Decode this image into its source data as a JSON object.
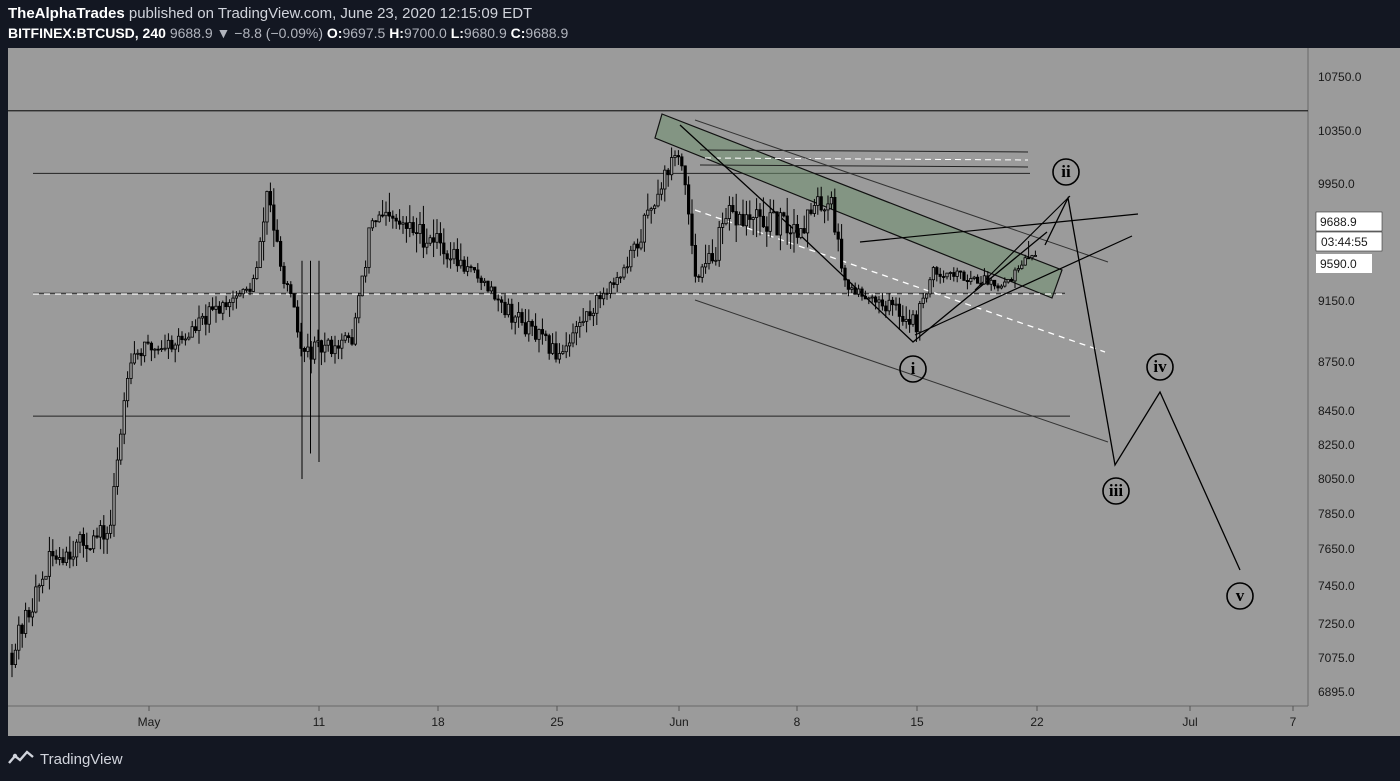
{
  "header": {
    "author": "TheAlphaTrades",
    "published_text": "published on TradingView.com, June 23, 2020 12:15:09 EDT",
    "symbol": "BITFINEX:BTCUSD, 240",
    "last_price": "9688.9",
    "change": "▼ −8.8 (−0.09%)",
    "o_label": "O:",
    "o_value": "9697.5",
    "h_label": "H:",
    "h_value": "9700.0",
    "l_label": "L:",
    "l_value": "9680.9",
    "c_label": "C:",
    "c_value": "9688.9"
  },
  "price_tag": {
    "price": "9688.9",
    "countdown": "03:44:55",
    "level": "9590.0"
  },
  "footer": {
    "logo_text": "TradingView"
  },
  "colors": {
    "background": "#9b9b9b",
    "frame": "#131722",
    "candle": "#000000",
    "channel_fill": "#6f8f6f",
    "dashed": "#ffffff"
  },
  "chart_data": {
    "type": "candlestick",
    "symbol": "BITFINEX:BTCUSD",
    "timeframe": "240",
    "y_ticks": [
      "10750.0",
      "10350.0",
      "9950.0",
      "9590.0",
      "9150.0",
      "8750.0",
      "8450.0",
      "8250.0",
      "8050.0",
      "7850.0",
      "7650.0",
      "7450.0",
      "7250.0",
      "7075.0",
      "6895.0"
    ],
    "x_ticks": [
      "May",
      "11",
      "18",
      "25",
      "Jun",
      "8",
      "15",
      "22",
      "Jul",
      "7"
    ],
    "horizontal_levels": [
      10500,
      10030,
      9240,
      8420
    ],
    "approx_path": [
      {
        "x": "Apr 24",
        "y": 7100
      },
      {
        "x": "Apr 26",
        "y": 7600
      },
      {
        "x": "Apr 29",
        "y": 7750
      },
      {
        "x": "Apr 30",
        "y": 8800
      },
      {
        "x": "May 3",
        "y": 8900
      },
      {
        "x": "May 7",
        "y": 9300
      },
      {
        "x": "May 8",
        "y": 9950
      },
      {
        "x": "May 10",
        "y": 8800
      },
      {
        "x": "May 13",
        "y": 8900
      },
      {
        "x": "May 14",
        "y": 9800
      },
      {
        "x": "May 18",
        "y": 9700
      },
      {
        "x": "May 20",
        "y": 9500
      },
      {
        "x": "May 22",
        "y": 9100
      },
      {
        "x": "May 25",
        "y": 8800
      },
      {
        "x": "May 27",
        "y": 9100
      },
      {
        "x": "Jun 1",
        "y": 10200
      },
      {
        "x": "Jun 2",
        "y": 9450
      },
      {
        "x": "Jun 4",
        "y": 9800
      },
      {
        "x": "Jun 8",
        "y": 9750
      },
      {
        "x": "Jun 10",
        "y": 9900
      },
      {
        "x": "Jun 11",
        "y": 9300
      },
      {
        "x": "Jun 15",
        "y": 9000
      },
      {
        "x": "Jun 16",
        "y": 9500
      },
      {
        "x": "Jun 20",
        "y": 9350
      },
      {
        "x": "Jun 22",
        "y": 9690
      }
    ],
    "elliott_projection": [
      {
        "label": "ii",
        "price": 9870
      },
      {
        "label": "iii",
        "price": 8150
      },
      {
        "label": "iv",
        "price": 8550
      },
      {
        "label": "v",
        "price": 7500
      }
    ],
    "wave_labels": [
      "i",
      "ii",
      "iii",
      "iv",
      "v"
    ]
  }
}
